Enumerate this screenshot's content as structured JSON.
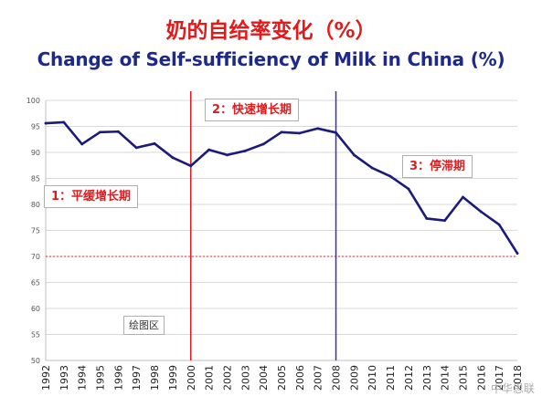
{
  "title_cn": "奶的自给率变化（%）",
  "title_en": "Change of Self-sufficiency of Milk in China (%)",
  "phase_labels": [
    "1：平缓增长期",
    "2：快速增长期",
    "3：停滞期"
  ],
  "plot_area_label": "绘图区",
  "watermark": "中华思联",
  "colors": {
    "title_cn": "#e31a1c",
    "title_en": "#1d2a8a",
    "series_line": "#1c1a7a",
    "marker_2000": "#e31a1c",
    "marker_2008": "#3b2dbf",
    "ref_line_70": "#c0392b",
    "grid": "#d9d9d9"
  },
  "chart_data": {
    "type": "line",
    "title": "奶的自给率变化（%）",
    "subtitle": "Change of Self-sufficiency of Milk in China (%)",
    "categories": [
      "1992",
      "1993",
      "1994",
      "1995",
      "1996",
      "1997",
      "1998",
      "1999",
      "2000",
      "2001",
      "2002",
      "2003",
      "2004",
      "2005",
      "2006",
      "2007",
      "2008",
      "2009",
      "2010",
      "2011",
      "2012",
      "2013",
      "2014",
      "2015",
      "2016",
      "2017",
      "2018"
    ],
    "x_tick_labels": [
      "1992",
      "1993",
      "1994",
      "1995",
      "1996",
      "1997",
      "1998",
      "1999",
      "2000",
      "2001",
      "2002",
      "2003",
      "2004",
      "2005",
      "2006",
      "2007",
      "2008",
      "2009",
      "2010",
      "2011",
      "2012",
      "2013",
      "2014",
      "2015",
      "2016",
      "2017",
      "2018"
    ],
    "series": [
      {
        "values": [
          95.6,
          95.8,
          91.6,
          93.9,
          94.0,
          90.9,
          91.7,
          89.0,
          87.4,
          90.5,
          89.5,
          90.3,
          91.6,
          93.9,
          93.7,
          94.6,
          93.8,
          89.5,
          87.0,
          85.4,
          83.0,
          77.3,
          76.9,
          81.4,
          78.6,
          76.1,
          70.6
        ]
      }
    ],
    "ylim": [
      50,
      100
    ],
    "y_ticks": [
      50,
      55,
      60,
      65,
      70,
      75,
      80,
      85,
      90,
      95,
      100
    ],
    "grid": true,
    "vertical_markers": [
      {
        "x": "2000",
        "color": "#e31a1c"
      },
      {
        "x": "2008",
        "color": "#3b2dbf"
      }
    ],
    "reference_line": {
      "y": 70,
      "style": "dotted",
      "color": "#c0392b"
    },
    "legend": "none"
  }
}
